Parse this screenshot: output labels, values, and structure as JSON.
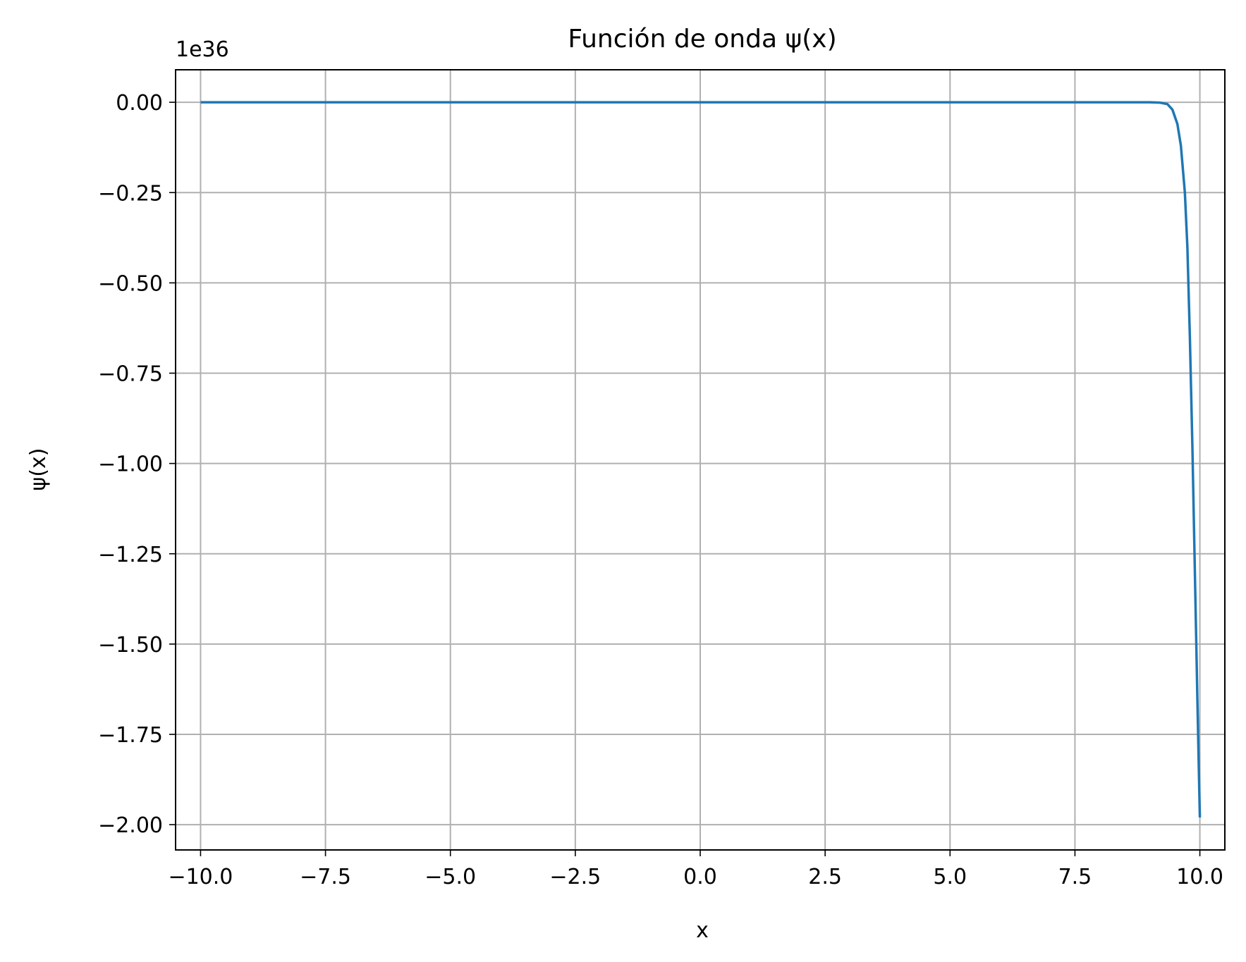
{
  "chart_data": {
    "type": "line",
    "title": "Función de onda ψ(x)",
    "xlabel": "x",
    "ylabel": "ψ(x)",
    "offset_text": "1e36",
    "y_scale_factor": 1e+36,
    "xlim": [
      -10.5,
      10.5
    ],
    "ylim": [
      -2.07,
      0.09
    ],
    "grid": true,
    "xticks": [
      -10.0,
      -7.5,
      -5.0,
      -2.5,
      0.0,
      2.5,
      5.0,
      7.5,
      10.0
    ],
    "xtick_labels": [
      "−10.0",
      "−7.5",
      "−5.0",
      "−2.5",
      "0.0",
      "2.5",
      "5.0",
      "7.5",
      "10.0"
    ],
    "yticks": [
      0.0,
      -0.25,
      -0.5,
      -0.75,
      -1.0,
      -1.25,
      -1.5,
      -1.75,
      -2.0
    ],
    "ytick_labels": [
      "0.00",
      "−0.25",
      "−0.50",
      "−0.75",
      "−1.00",
      "−1.25",
      "−1.50",
      "−1.75",
      "−2.00"
    ],
    "series": [
      {
        "color": "#1f77b4",
        "x": [
          -10.0,
          -7.5,
          -5.0,
          -2.5,
          0.0,
          2.5,
          5.0,
          7.5,
          8.5,
          9.0,
          9.2,
          9.35,
          9.45,
          9.55,
          9.62,
          9.7,
          9.75,
          9.8,
          9.85,
          9.9,
          9.95,
          9.98,
          10.0
        ],
        "y": [
          0.0,
          0.0,
          0.0,
          0.0,
          0.0,
          0.0,
          0.0,
          0.0,
          0.0,
          0.0,
          -0.001,
          -0.005,
          -0.02,
          -0.06,
          -0.12,
          -0.25,
          -0.4,
          -0.65,
          -0.95,
          -1.3,
          -1.65,
          -1.85,
          -1.98
        ]
      }
    ]
  }
}
